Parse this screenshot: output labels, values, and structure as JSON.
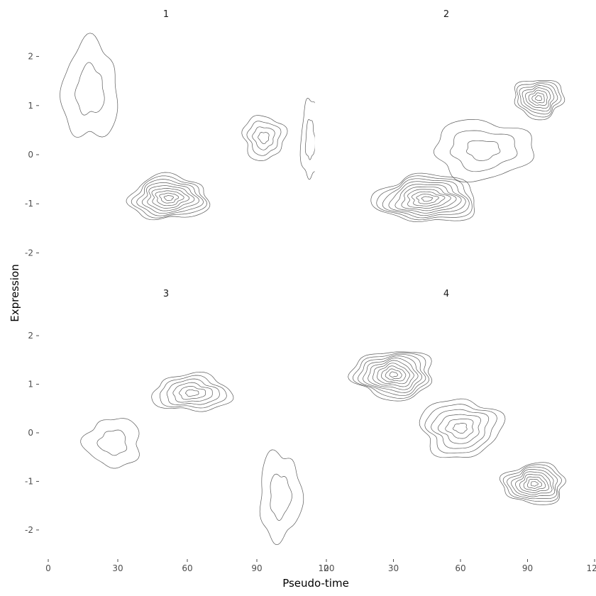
{
  "chart_data": {
    "type": "contour",
    "xlabel": "Pseudo-time",
    "ylabel": "Expression",
    "xlim": [
      0,
      120
    ],
    "ylim": [
      -2.6,
      2.6
    ],
    "x_ticks": [
      0,
      30,
      60,
      90,
      120
    ],
    "x_tick_labels": [
      "0",
      "30",
      "60",
      "90",
      "120"
    ],
    "y_ticks": [
      -2,
      -1,
      0,
      1,
      2
    ],
    "y_tick_labels": [
      "-2",
      "-1",
      "0",
      "1",
      "2"
    ],
    "grid": false,
    "facets": [
      {
        "title": "1",
        "x_max_drawn": 115,
        "clusters": [
          {
            "center": [
              52,
              -0.88
            ],
            "spread": [
              17,
              0.45
            ],
            "levels": 9
          },
          {
            "center": [
              18,
              1.3
            ],
            "spread": [
              12,
              1.0
            ],
            "levels": 2
          },
          {
            "center": [
              93,
              0.35
            ],
            "spread": [
              9,
              0.45
            ],
            "levels": 4
          },
          {
            "center": [
              113,
              0.3
            ],
            "spread": [
              4,
              0.8
            ],
            "levels": 2
          }
        ]
      },
      {
        "title": "2",
        "x_max_drawn": 115,
        "clusters": [
          {
            "center": [
              45,
              -0.9
            ],
            "spread": [
              23,
              0.48
            ],
            "levels": 10
          },
          {
            "center": [
              95,
              1.15
            ],
            "spread": [
              11,
              0.4
            ],
            "levels": 8
          },
          {
            "center": [
              70,
              0.1
            ],
            "spread": [
              22,
              0.6
            ],
            "levels": 3
          }
        ]
      },
      {
        "title": "3",
        "x_max_drawn": 115,
        "clusters": [
          {
            "center": [
              62,
              0.82
            ],
            "spread": [
              17,
              0.38
            ],
            "levels": 6
          },
          {
            "center": [
              28,
              -0.2
            ],
            "spread": [
              12,
              0.5
            ],
            "levels": 2
          },
          {
            "center": [
              100,
              -1.3
            ],
            "spread": [
              9,
              0.9
            ],
            "levels": 2
          }
        ]
      },
      {
        "title": "4",
        "x_max_drawn": 115,
        "clusters": [
          {
            "center": [
              30,
              1.2
            ],
            "spread": [
              18,
              0.5
            ],
            "levels": 10
          },
          {
            "center": [
              60,
              0.1
            ],
            "spread": [
              18,
              0.6
            ],
            "levels": 6
          },
          {
            "center": [
              93,
              -1.05
            ],
            "spread": [
              14,
              0.42
            ],
            "levels": 9
          }
        ]
      }
    ]
  }
}
